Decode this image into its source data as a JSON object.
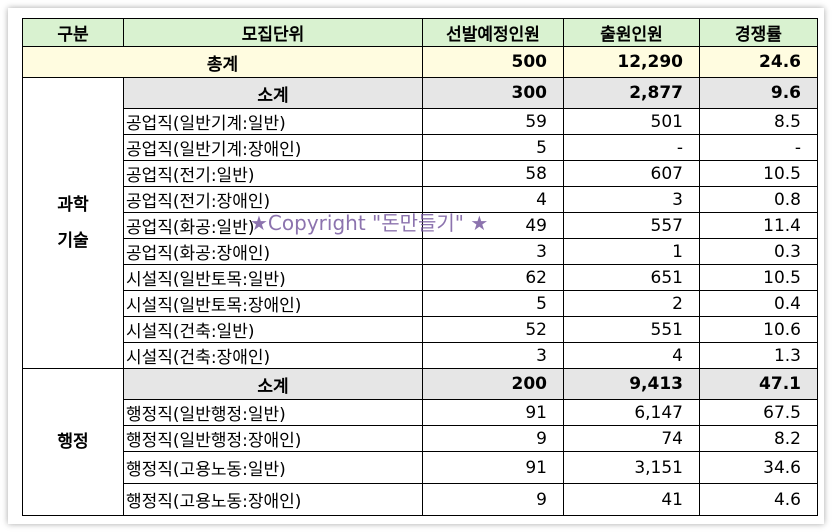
{
  "headers": [
    "구분",
    "모집단위",
    "선발예정인원",
    "출원인원",
    "경쟁률"
  ],
  "total": {
    "label": "총계",
    "selected": "500",
    "applicants": "12,290",
    "ratio": "24.6"
  },
  "groups": [
    {
      "category": [
        "과학",
        "기술"
      ],
      "subtotal": {
        "label": "소계",
        "selected": "300",
        "applicants": "2,877",
        "ratio": "9.6"
      },
      "rows": [
        {
          "unit": "공업직(일반기계:일반)",
          "selected": "59",
          "applicants": "501",
          "ratio": "8.5"
        },
        {
          "unit": "공업직(일반기계:장애인)",
          "selected": "5",
          "applicants": "-",
          "ratio": "-"
        },
        {
          "unit": "공업직(전기:일반)",
          "selected": "58",
          "applicants": "607",
          "ratio": "10.5"
        },
        {
          "unit": "공업직(전기:장애인)",
          "selected": "4",
          "applicants": "3",
          "ratio": "0.8"
        },
        {
          "unit": "공업직(화공:일반)",
          "selected": "49",
          "applicants": "557",
          "ratio": "11.4"
        },
        {
          "unit": "공업직(화공:장애인)",
          "selected": "3",
          "applicants": "1",
          "ratio": "0.3"
        },
        {
          "unit": "시설직(일반토목:일반)",
          "selected": "62",
          "applicants": "651",
          "ratio": "10.5"
        },
        {
          "unit": "시설직(일반토목:장애인)",
          "selected": "5",
          "applicants": "2",
          "ratio": "0.4"
        },
        {
          "unit": "시설직(건축:일반)",
          "selected": "52",
          "applicants": "551",
          "ratio": "10.6"
        },
        {
          "unit": "시설직(건축:장애인)",
          "selected": "3",
          "applicants": "4",
          "ratio": "1.3"
        }
      ]
    },
    {
      "category": [
        "행정"
      ],
      "subtotal": {
        "label": "소계",
        "selected": "200",
        "applicants": "9,413",
        "ratio": "47.1"
      },
      "rows": [
        {
          "unit": "행정직(일반행정:일반)",
          "selected": "91",
          "applicants": "6,147",
          "ratio": "67.5"
        },
        {
          "unit": "행정직(일반행정:장애인)",
          "selected": "9",
          "applicants": "74",
          "ratio": "8.2"
        },
        {
          "unit": "행정직(고용노동:일반)",
          "selected": "91",
          "applicants": "3,151",
          "ratio": "34.6"
        },
        {
          "unit": "행정직(고용노동:장애인)",
          "selected": "9",
          "applicants": "41",
          "ratio": "4.6"
        }
      ]
    }
  ],
  "watermark": "★Copyright \"돈만들기\" ★"
}
